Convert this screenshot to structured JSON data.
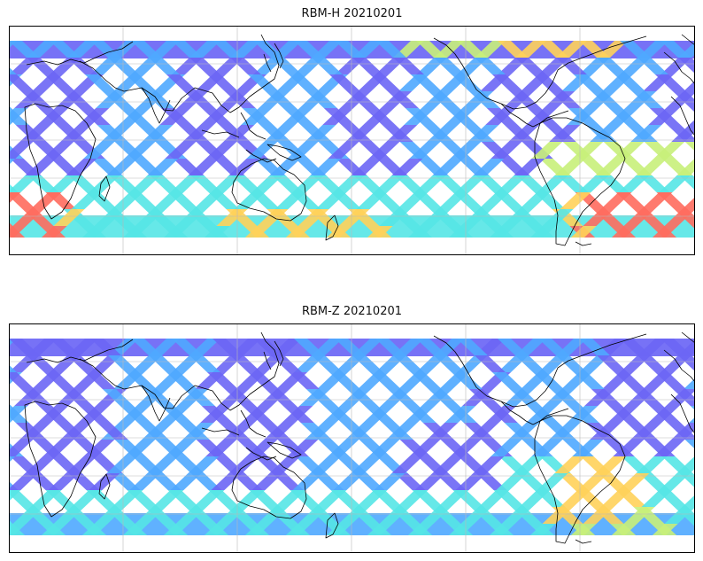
{
  "panels": [
    {
      "id": "rbm-h",
      "title": "RBM-H 20210201"
    },
    {
      "id": "rbm-z",
      "title": "RBM-Z 20210201"
    }
  ],
  "colors": {
    "low": "#6b66f5",
    "mid_low": "#4fa8ff",
    "mid": "#55e6e6",
    "mid_high": "#c8f07a",
    "high_mid": "#ffd15a",
    "high": "#ff6b5e"
  }
}
